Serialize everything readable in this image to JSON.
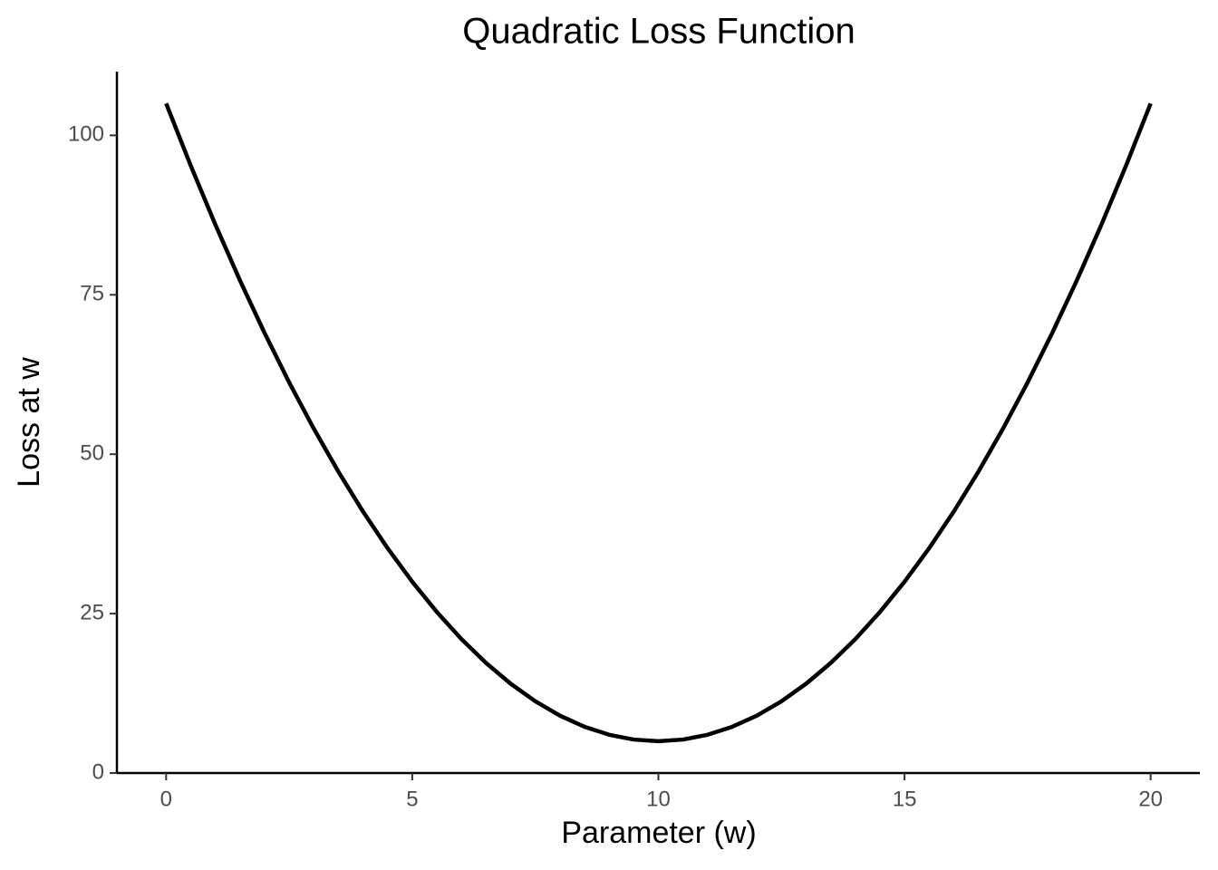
{
  "chart_data": {
    "type": "line",
    "title": "Quadratic Loss Function",
    "x_label": "Parameter (w)",
    "y_label": "Loss at w",
    "x": [
      0,
      0.5,
      1,
      1.5,
      2,
      2.5,
      3,
      3.5,
      4,
      4.5,
      5,
      5.5,
      6,
      6.5,
      7,
      7.5,
      8,
      8.5,
      9,
      9.5,
      10,
      10.5,
      11,
      11.5,
      12,
      12.5,
      13,
      13.5,
      14,
      14.5,
      15,
      15.5,
      16,
      16.5,
      17,
      17.5,
      18,
      18.5,
      19,
      19.5,
      20
    ],
    "series": [
      {
        "color": "#000000",
        "values": [
          105,
          95.25,
          86,
          77.25,
          69,
          61.25,
          54,
          47.25,
          41,
          35.25,
          30,
          25.25,
          21,
          17.25,
          14,
          11.25,
          9,
          7.25,
          6,
          5.25,
          5,
          5.25,
          6,
          7.25,
          9,
          11.25,
          14,
          17.25,
          21,
          25.25,
          30,
          35.25,
          41,
          47.25,
          54,
          61.25,
          69,
          77.25,
          86,
          95.25,
          105
        ]
      }
    ],
    "xlim": [
      -1,
      21
    ],
    "ylim": [
      0,
      110
    ],
    "xticks": [
      0,
      5,
      10,
      15,
      20
    ],
    "yticks": [
      0,
      25,
      50,
      75,
      100
    ],
    "grid": false
  }
}
